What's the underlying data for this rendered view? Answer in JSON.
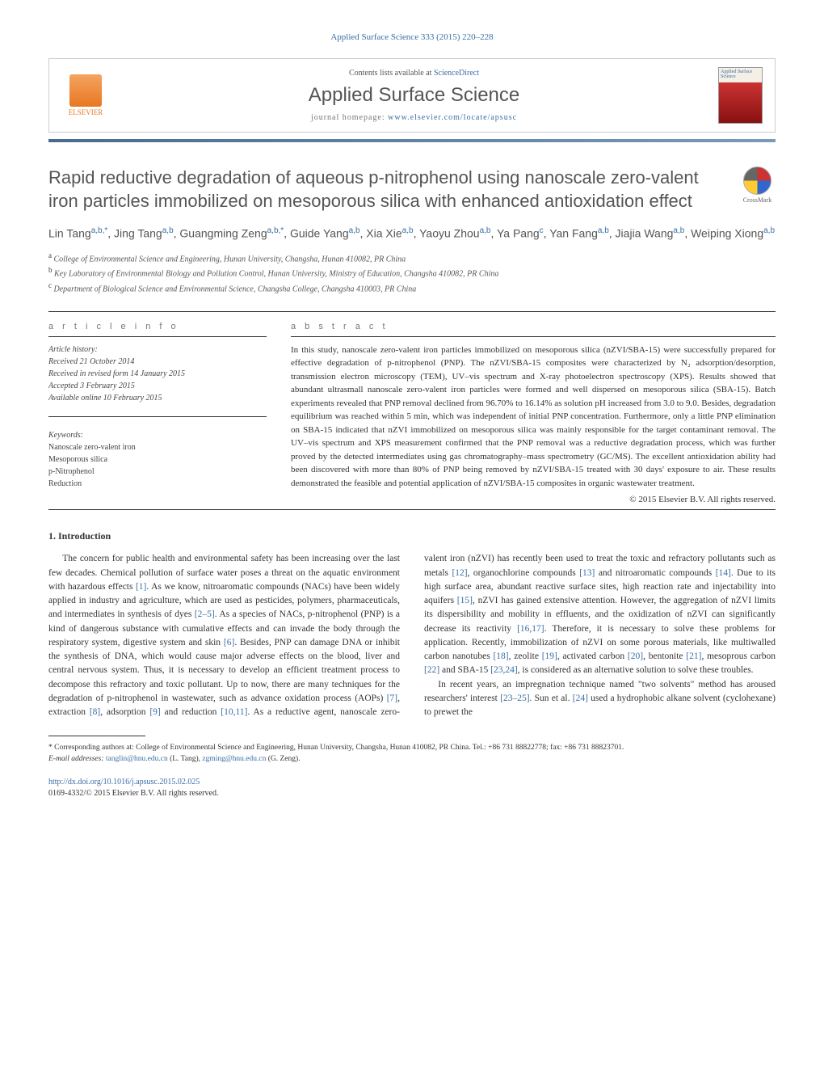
{
  "journal_ref": "Applied Surface Science 333 (2015) 220–228",
  "header": {
    "publisher": "ELSEVIER",
    "contents_label": "Contents lists available at",
    "contents_link": "ScienceDirect",
    "journal_name": "Applied Surface Science",
    "homepage_label": "journal homepage:",
    "homepage_url": "www.elsevier.com/locate/apsusc",
    "cover_label": "Applied Surface Science"
  },
  "crossmark": "CrossMark",
  "title": "Rapid reductive degradation of aqueous p-nitrophenol using nanoscale zero-valent iron particles immobilized on mesoporous silica with enhanced antioxidation effect",
  "authors_html": "Lin Tang<sup>a,b,*</sup>, Jing Tang<sup>a,b</sup>, Guangming Zeng<sup>a,b,*</sup>, Guide Yang<sup>a,b</sup>, Xia Xie<sup>a,b</sup>, Yaoyu Zhou<sup>a,b</sup>, Ya Pang<sup>c</sup>, Yan Fang<sup>a,b</sup>, Jiajia Wang<sup>a,b</sup>, Weiping Xiong<sup>a,b</sup>",
  "affiliations": [
    {
      "sup": "a",
      "text": "College of Environmental Science and Engineering, Hunan University, Changsha, Hunan 410082, PR China"
    },
    {
      "sup": "b",
      "text": "Key Laboratory of Environmental Biology and Pollution Control, Hunan University, Ministry of Education, Changsha 410082, PR China"
    },
    {
      "sup": "c",
      "text": "Department of Biological Science and Environmental Science, Changsha College, Changsha 410003, PR China"
    }
  ],
  "info_heading": "a r t i c l e   i n f o",
  "abstract_heading": "a b s t r a c t",
  "history": {
    "label": "Article history:",
    "items": [
      "Received 21 October 2014",
      "Received in revised form 14 January 2015",
      "Accepted 3 February 2015",
      "Available online 10 February 2015"
    ]
  },
  "keywords": {
    "label": "Keywords:",
    "items": [
      "Nanoscale zero-valent iron",
      "Mesoporous silica",
      "p-Nitrophenol",
      "Reduction"
    ]
  },
  "abstract": "In this study, nanoscale zero-valent iron particles immobilized on mesoporous silica (nZVI/SBA-15) were successfully prepared for effective degradation of p-nitrophenol (PNP). The nZVI/SBA-15 composites were characterized by N₂ adsorption/desorption, transmission electron microscopy (TEM), UV–vis spectrum and X-ray photoelectron spectroscopy (XPS). Results showed that abundant ultrasmall nanoscale zero-valent iron particles were formed and well dispersed on mesoporous silica (SBA-15). Batch experiments revealed that PNP removal declined from 96.70% to 16.14% as solution pH increased from 3.0 to 9.0. Besides, degradation equilibrium was reached within 5 min, which was independent of initial PNP concentration. Furthermore, only a little PNP elimination on SBA-15 indicated that nZVI immobilized on mesoporous silica was mainly responsible for the target contaminant removal. The UV–vis spectrum and XPS measurement confirmed that the PNP removal was a reductive degradation process, which was further proved by the detected intermediates using gas chromatography–mass spectrometry (GC/MS). The excellent antioxidation ability had been discovered with more than 80% of PNP being removed by nZVI/SBA-15 treated with 30 days' exposure to air. These results demonstrated the feasible and potential application of nZVI/SBA-15 composites in organic wastewater treatment.",
  "copyright": "© 2015 Elsevier B.V. All rights reserved.",
  "intro_heading": "1. Introduction",
  "body_p1": "The concern for public health and environmental safety has been increasing over the last few decades. Chemical pollution of surface water poses a threat on the aquatic environment with hazardous effects ",
  "body_p1_ref1": "[1]",
  "body_p1_cont": ". As we know, nitroaromatic compounds (NACs) have been widely applied in industry and agriculture, which are used as pesticides, polymers, pharmaceuticals, and intermediates in synthesis of dyes ",
  "body_p1_ref2": "[2–5]",
  "body_p1_cont2": ". As a species of NACs, p-nitrophenol (PNP) is a kind of dangerous substance with cumulative effects and can invade the body through the respiratory system, digestive system and skin ",
  "body_p1_ref3": "[6]",
  "body_p1_cont3": ". Besides, PNP can damage DNA or inhibit the synthesis of DNA, which would cause major adverse effects on the blood, liver and central nervous system. Thus, it is necessary to develop an",
  "body_p2": "efficient treatment process to decompose this refractory and toxic pollutant. Up to now, there are many techniques for the degradation of p-nitrophenol in wastewater, such as advance oxidation process (AOPs) ",
  "refs": {
    "r7": "[7]",
    "r8": "[8]",
    "r9": "[9]",
    "r1011": "[10,11]",
    "r12": "[12]",
    "r13": "[13]",
    "r14": "[14]",
    "r15": "[15]",
    "r1617": "[16,17]",
    "r18": "[18]",
    "r19": "[19]",
    "r20": "[20]",
    "r21": "[21]",
    "r22": "[22]",
    "r2324": "[23,24]",
    "r2325": "[23–25]",
    "r24": "[24]"
  },
  "body_p2_parts": {
    "t1": ", extraction ",
    "t2": ", adsorption ",
    "t3": " and reduction ",
    "t4": ". As a reductive agent, nanoscale zero-valent iron (nZVI) has recently been used to treat the toxic and refractory pollutants such as metals ",
    "t5": ", organochlorine compounds ",
    "t6": " and nitroaromatic compounds ",
    "t7": ". Due to its high surface area, abundant reactive surface sites, high reaction rate and injectability into aquifers ",
    "t8": ", nZVI has gained extensive attention. However, the aggregation of nZVI limits its dispersibility and mobility in effluents, and the oxidization of nZVI can significantly decrease its reactivity ",
    "t9": ". Therefore, it is necessary to solve these problems for application. Recently, immobilization of nZVI on some porous materials, like multiwalled carbon nanotubes ",
    "t10": ", zeolite ",
    "t11": ", activated carbon ",
    "t12": ", bentonite ",
    "t13": ", mesoprous carbon ",
    "t14": " and SBA-15 ",
    "t15": ", is considered as an alternative solution to solve these troubles."
  },
  "body_p3": "In recent years, an impregnation technique named \"two solvents\" method has aroused researchers' interest ",
  "body_p3_cont": ". Sun et al. ",
  "body_p3_end": " used a hydrophobic alkane solvent (cyclohexane) to prewet the",
  "footnote": {
    "star": "* Corresponding authors at: College of Environmental Science and Engineering, Hunan University, Changsha, Hunan 410082, PR China. Tel.: +86 731 88822778; fax: +86 731 88823701.",
    "email_label": "E-mail addresses:",
    "email1": "tanglin@hnu.edu.cn",
    "email1_name": " (L. Tang), ",
    "email2": "zgming@hnu.edu.cn",
    "email2_name": " (G. Zeng)."
  },
  "doi": {
    "url": "http://dx.doi.org/10.1016/j.apsusc.2015.02.025",
    "issn_line": "0169-4332/© 2015 Elsevier B.V. All rights reserved."
  },
  "colors": {
    "link": "#3a6ea5",
    "accent": "#e87722",
    "text": "#333333",
    "muted": "#555555",
    "grad_start": "#4a6b8a",
    "grad_end": "#7a9ab8"
  }
}
